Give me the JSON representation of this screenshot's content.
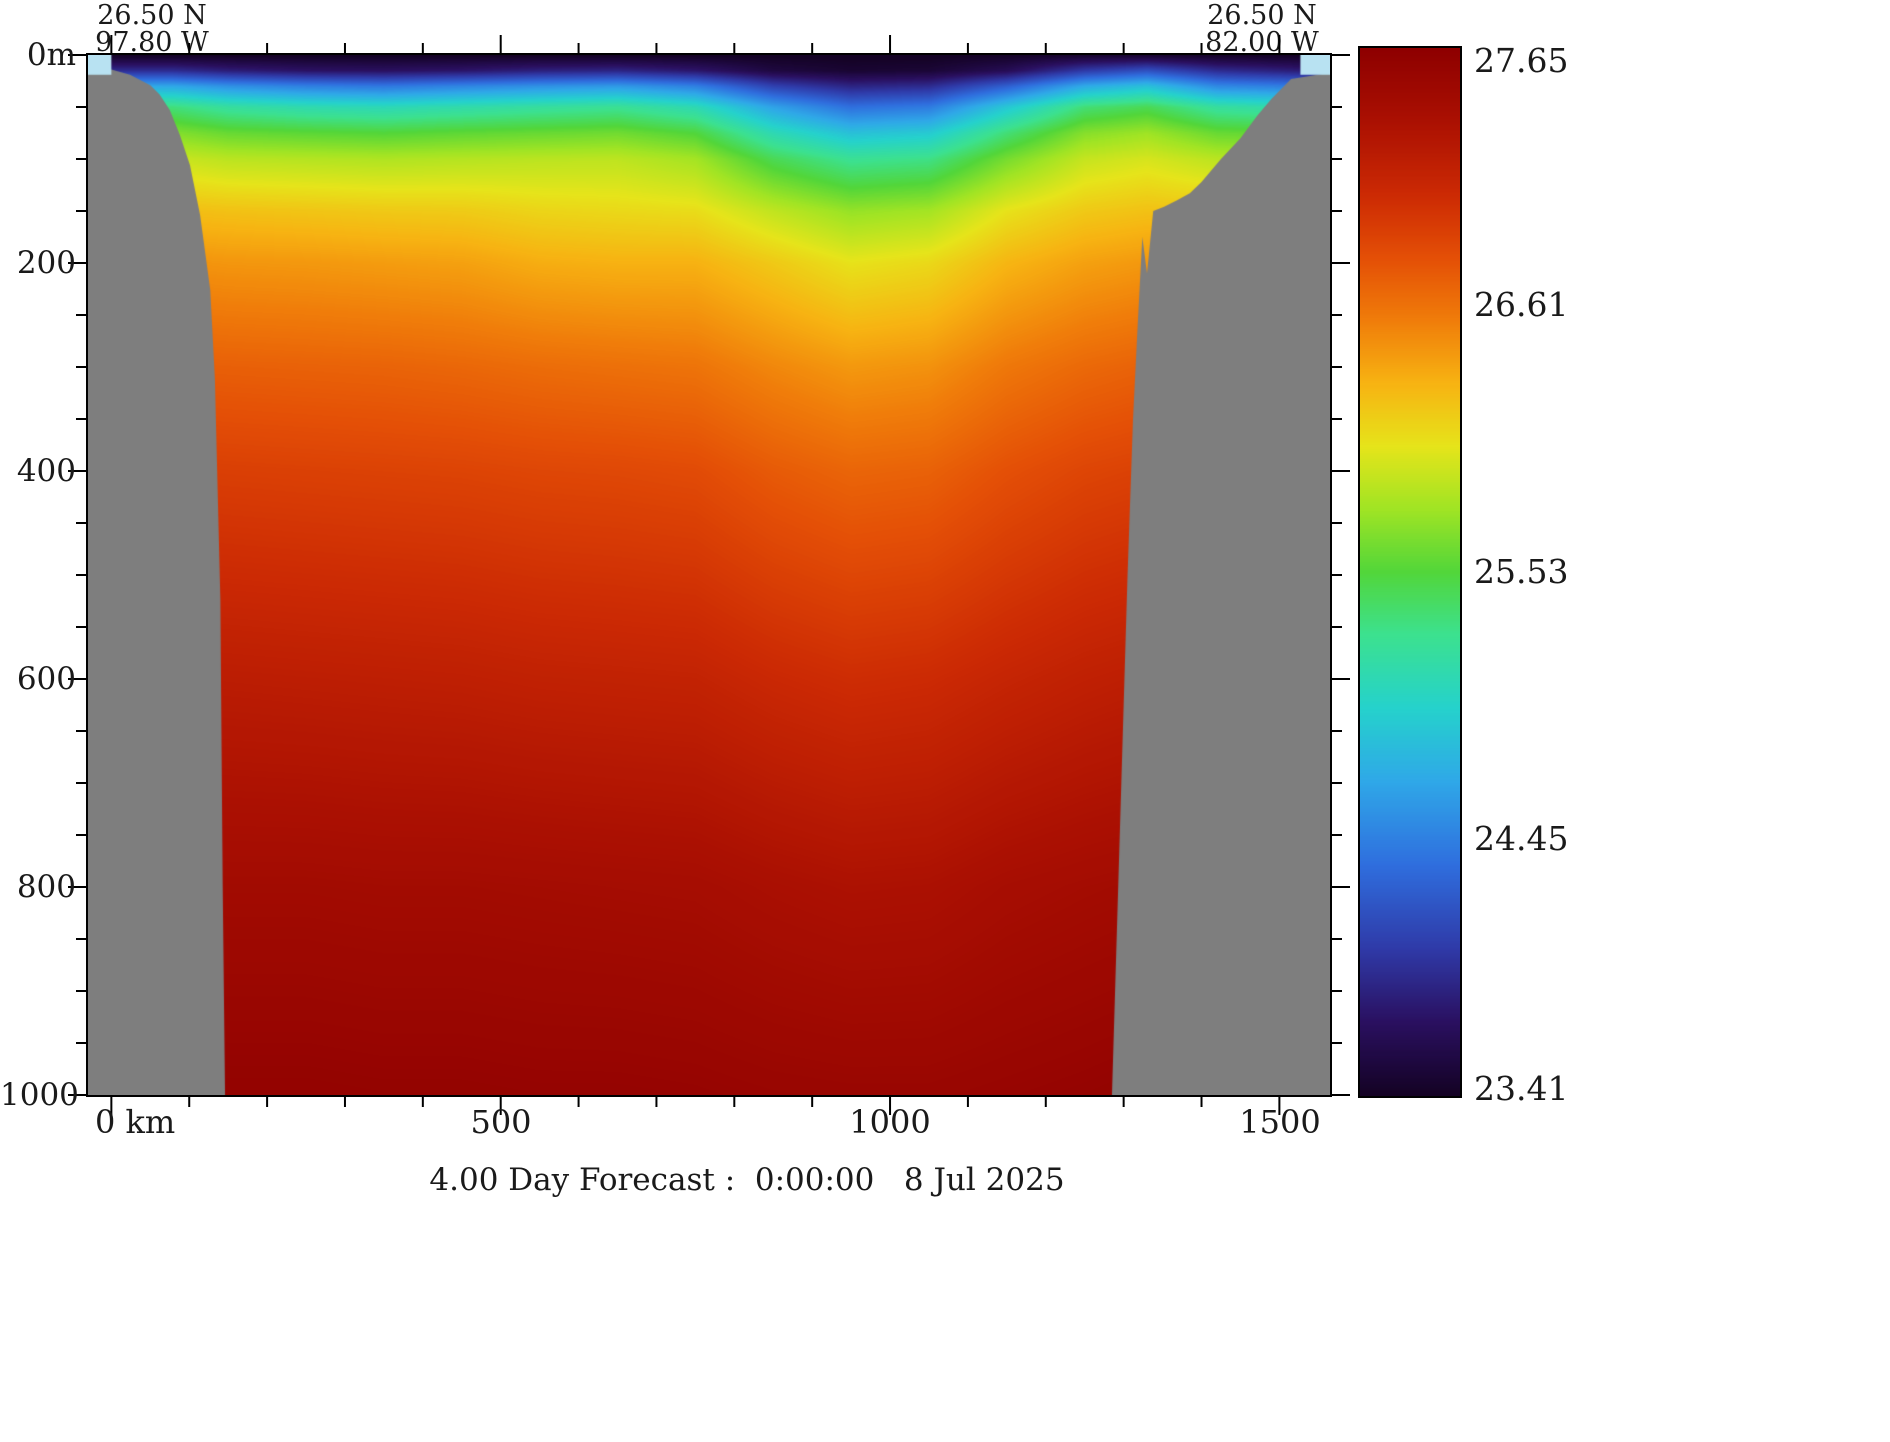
{
  "header": {
    "left_lat": "26.50 N",
    "left_lon": "97.80 W",
    "right_lat": "26.50 N",
    "right_lon": "82.00 W"
  },
  "caption": {
    "text": "4.00 Day Forecast :  0:00:00   8 Jul 2025"
  },
  "axes": {
    "y_ticks": [
      {
        "value": 0,
        "label": "0m"
      },
      {
        "value": 200,
        "label": "200"
      },
      {
        "value": 400,
        "label": "400"
      },
      {
        "value": 600,
        "label": "600"
      },
      {
        "value": 800,
        "label": "800"
      },
      {
        "value": 1000,
        "label": "1000"
      }
    ],
    "x_ticks": [
      {
        "value": 0,
        "label": "0 km"
      },
      {
        "value": 500,
        "label": "500"
      },
      {
        "value": 1000,
        "label": "1000"
      },
      {
        "value": 1500,
        "label": "1500"
      }
    ]
  },
  "colorbar": {
    "min": 23.41,
    "max": 27.65,
    "labels": [
      "27.65",
      "26.61",
      "25.53",
      "24.45",
      "23.41"
    ]
  },
  "chart_data": {
    "type": "heatmap",
    "title": "4.00 Day Forecast :  0:00:00   8 Jul 2025",
    "section_endpoints": {
      "left": "26.50 N 97.80 W",
      "right": "26.50 N 82.00 W"
    },
    "x_units": "km",
    "x_range": [
      -30,
      1565
    ],
    "x_ticks_major": [
      0,
      500,
      1000,
      1500
    ],
    "x_tick_minor_step": 100,
    "depth_units": "m",
    "depth_range": [
      0,
      1000
    ],
    "depth_ticks_major": [
      0,
      200,
      400,
      600,
      800,
      1000
    ],
    "depth_tick_minor_step": 50,
    "value_range": [
      23.41,
      27.65
    ],
    "depths": [
      0,
      15,
      30,
      50,
      75,
      100,
      150,
      200,
      300,
      400,
      600,
      800,
      1000
    ],
    "stations": [
      {
        "km": -30,
        "values": [
          23.4,
          23.9,
          24.7,
          25.35,
          25.7,
          25.95,
          26.25,
          26.45,
          26.72,
          26.92,
          27.22,
          27.46,
          27.6
        ]
      },
      {
        "km": 80,
        "values": [
          23.4,
          23.9,
          24.68,
          25.33,
          25.69,
          25.94,
          26.24,
          26.45,
          26.72,
          26.92,
          27.22,
          27.46,
          27.6
        ]
      },
      {
        "km": 150,
        "values": [
          23.4,
          23.8,
          24.55,
          25.2,
          25.6,
          25.88,
          26.22,
          26.43,
          26.71,
          26.91,
          27.21,
          27.45,
          27.6
        ]
      },
      {
        "km": 250,
        "values": [
          23.4,
          23.72,
          24.45,
          25.12,
          25.56,
          25.86,
          26.2,
          26.42,
          26.7,
          26.9,
          27.2,
          27.45,
          27.6
        ]
      },
      {
        "km": 350,
        "values": [
          23.4,
          23.7,
          24.4,
          25.08,
          25.53,
          25.84,
          26.18,
          26.4,
          26.69,
          26.89,
          27.19,
          27.44,
          27.59
        ]
      },
      {
        "km": 450,
        "values": [
          23.4,
          23.74,
          24.48,
          25.14,
          25.57,
          25.86,
          26.17,
          26.38,
          26.67,
          26.88,
          27.18,
          27.44,
          27.59
        ]
      },
      {
        "km": 550,
        "values": [
          23.4,
          23.82,
          24.55,
          25.2,
          25.6,
          25.88,
          26.12,
          26.32,
          26.64,
          26.86,
          27.16,
          27.43,
          27.58
        ]
      },
      {
        "km": 650,
        "values": [
          23.4,
          23.85,
          24.6,
          25.25,
          25.63,
          25.89,
          26.1,
          26.3,
          26.62,
          26.85,
          27.15,
          27.42,
          27.58
        ]
      },
      {
        "km": 750,
        "values": [
          23.4,
          23.75,
          24.45,
          25.1,
          25.52,
          25.8,
          26.08,
          26.3,
          26.6,
          26.83,
          27.14,
          27.41,
          27.57
        ]
      },
      {
        "km": 850,
        "values": [
          23.4,
          23.55,
          24.05,
          24.65,
          25.1,
          25.45,
          25.9,
          26.18,
          26.5,
          26.74,
          27.08,
          27.37,
          27.55
        ]
      },
      {
        "km": 950,
        "values": [
          23.4,
          23.48,
          23.85,
          24.35,
          24.85,
          25.25,
          25.75,
          26.05,
          26.42,
          26.68,
          27.04,
          27.34,
          27.54
        ]
      },
      {
        "km": 1050,
        "values": [
          23.4,
          23.5,
          23.9,
          24.42,
          24.92,
          25.3,
          25.8,
          26.1,
          26.45,
          26.7,
          27.06,
          27.35,
          27.54
        ]
      },
      {
        "km": 1150,
        "values": [
          23.42,
          23.65,
          24.25,
          24.9,
          25.35,
          25.65,
          26.05,
          26.28,
          26.58,
          26.8,
          27.12,
          27.4,
          27.56
        ]
      },
      {
        "km": 1250,
        "values": [
          23.45,
          24.0,
          24.7,
          25.35,
          25.7,
          25.92,
          26.18,
          26.38,
          26.66,
          26.87,
          27.17,
          27.43,
          27.58
        ]
      },
      {
        "km": 1330,
        "values": [
          23.45,
          24.15,
          24.85,
          25.45,
          25.78,
          25.98,
          26.22,
          26.42,
          26.7,
          26.9,
          27.2,
          27.45,
          27.6
        ]
      },
      {
        "km": 1420,
        "values": [
          23.42,
          23.9,
          24.5,
          25.2,
          25.6,
          25.88,
          26.2,
          26.42,
          26.7,
          26.9,
          27.2,
          27.45,
          27.6
        ]
      },
      {
        "km": 1565,
        "values": [
          23.4,
          23.75,
          24.4,
          25.1,
          25.55,
          25.85,
          26.2,
          26.42,
          26.7,
          26.9,
          27.2,
          27.45,
          27.6
        ]
      }
    ],
    "colormap": {
      "min": 23.41,
      "max": 27.65,
      "stops": [
        {
          "t": 0.0,
          "color": "#140224"
        },
        {
          "t": 0.07,
          "color": "#2a1060"
        },
        {
          "t": 0.14,
          "color": "#2f3aa8"
        },
        {
          "t": 0.22,
          "color": "#2f6ede"
        },
        {
          "t": 0.3,
          "color": "#2fa8e8"
        },
        {
          "t": 0.37,
          "color": "#25d2cc"
        },
        {
          "t": 0.44,
          "color": "#3ce18f"
        },
        {
          "t": 0.5,
          "color": "#52d63a"
        },
        {
          "t": 0.56,
          "color": "#a0e424"
        },
        {
          "t": 0.62,
          "color": "#e6e41a"
        },
        {
          "t": 0.68,
          "color": "#f7b312"
        },
        {
          "t": 0.74,
          "color": "#f07d0a"
        },
        {
          "t": 0.8,
          "color": "#e44f06"
        },
        {
          "t": 0.86,
          "color": "#cc2a04"
        },
        {
          "t": 0.93,
          "color": "#ab1002"
        },
        {
          "t": 1.0,
          "color": "#8e0000"
        }
      ]
    },
    "land_color": "#7e7e7e",
    "land_polygons": [
      [
        [
          -30,
          12
        ],
        [
          0,
          14
        ],
        [
          24,
          19
        ],
        [
          50,
          29
        ],
        [
          62,
          38
        ],
        [
          75,
          53
        ],
        [
          88,
          77
        ],
        [
          101,
          106
        ],
        [
          114,
          154
        ],
        [
          127,
          226
        ],
        [
          133,
          312
        ],
        [
          140,
          524
        ],
        [
          143,
          800
        ],
        [
          146,
          1000
        ],
        [
          -30,
          1000
        ]
      ],
      [
        [
          1285,
          1000
        ],
        [
          1297,
          700
        ],
        [
          1305,
          500
        ],
        [
          1312,
          350
        ],
        [
          1318,
          260
        ],
        [
          1324,
          175
        ],
        [
          1330,
          210
        ],
        [
          1338,
          150
        ],
        [
          1352,
          146
        ],
        [
          1368,
          140
        ],
        [
          1385,
          133
        ],
        [
          1400,
          122
        ],
        [
          1425,
          100
        ],
        [
          1450,
          80
        ],
        [
          1472,
          58
        ],
        [
          1490,
          42
        ],
        [
          1515,
          23
        ],
        [
          1565,
          17
        ],
        [
          1565,
          1000
        ]
      ]
    ],
    "missing_color": "#b8e2f2",
    "missing_cells": [
      {
        "km": [
          -30,
          0
        ],
        "depth": [
          0,
          19
        ]
      },
      {
        "km": [
          1527,
          1565
        ],
        "depth": [
          0,
          19
        ]
      }
    ]
  }
}
